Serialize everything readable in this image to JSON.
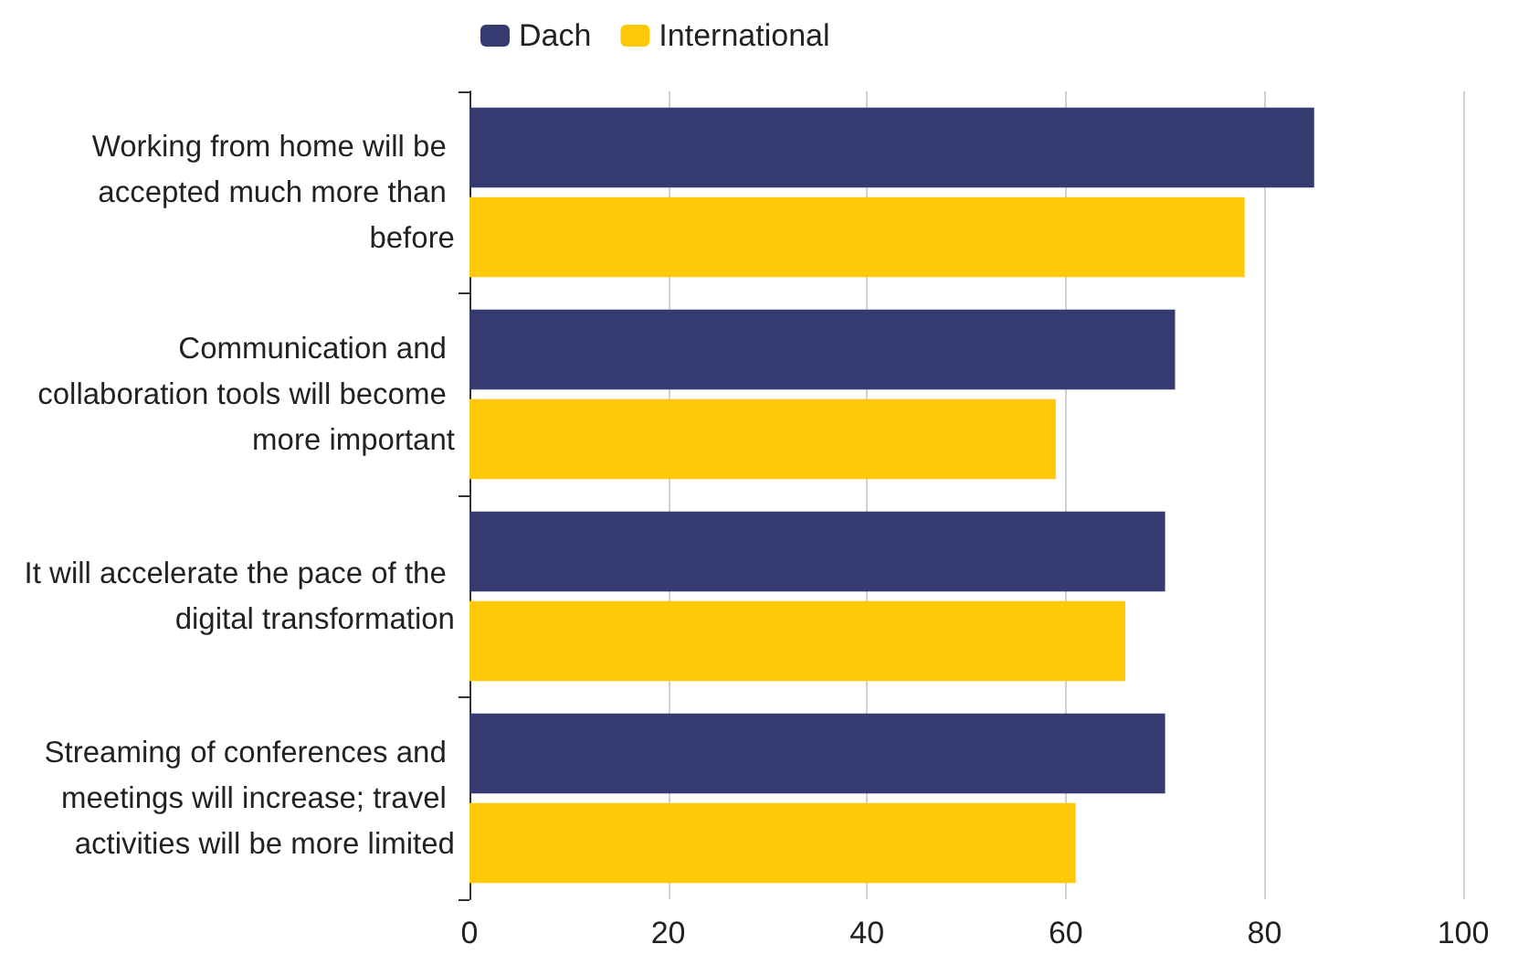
{
  "chart_data": {
    "type": "bar",
    "orientation": "horizontal",
    "categories": [
      "Working from home will be accepted much more than before",
      "Communication and collaboration tools will become more important",
      "It will accelerate the pace of the digital transformation",
      "Streaming of conferences and meetings will increase; travel activities will be more limited"
    ],
    "series": [
      {
        "name": "Dach",
        "color": "#353a70",
        "values": [
          85,
          71,
          70,
          70
        ]
      },
      {
        "name": "International",
        "color": "#ffc907",
        "values": [
          78,
          59,
          66,
          61
        ]
      }
    ],
    "xlim": [
      0,
      100
    ],
    "xticks": [
      0,
      20,
      40,
      60,
      80,
      100
    ],
    "grid": "x",
    "legend": "top left"
  }
}
